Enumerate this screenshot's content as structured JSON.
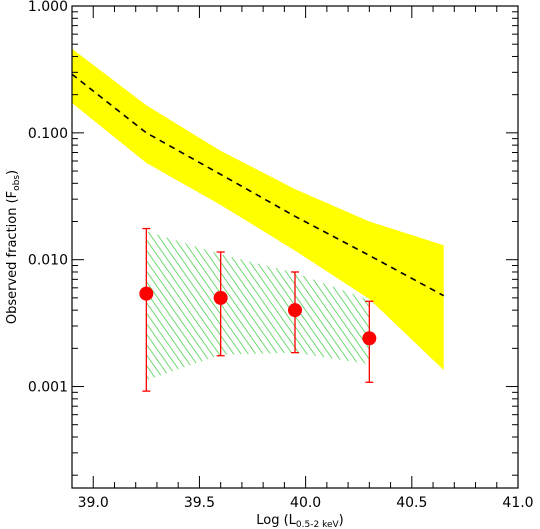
{
  "chart_data": {
    "type": "scatter",
    "xlabel_prefix": "Log (L",
    "xlabel_sub": "0.5-2 keV",
    "xlabel_suffix": ")",
    "ylabel_prefix": "Observed fraction (F",
    "ylabel_sub": "obs",
    "ylabel_suffix": ")",
    "xlim": [
      38.9,
      41.0
    ],
    "ylim": [
      0.0001585,
      1.0
    ],
    "y_scale": "log",
    "x_ticks": [
      {
        "value": 39.0,
        "label": "39.0"
      },
      {
        "value": 39.5,
        "label": "39.5"
      },
      {
        "value": 40.0,
        "label": "40.0"
      },
      {
        "value": 40.5,
        "label": "40.5"
      },
      {
        "value": 41.0,
        "label": "41.0"
      }
    ],
    "y_ticks": [
      {
        "value": 0.001,
        "label": "0.001"
      },
      {
        "value": 0.01,
        "label": "0.010"
      },
      {
        "value": 0.1,
        "label": "0.100"
      },
      {
        "value": 1.0,
        "label": "1.000"
      }
    ],
    "model_band": {
      "color": "#ffff00",
      "x": [
        38.9,
        39.25,
        39.6,
        39.95,
        40.3,
        40.65
      ],
      "upper": [
        0.46,
        0.165,
        0.072,
        0.036,
        0.02,
        0.013
      ],
      "lower": [
        0.172,
        0.058,
        0.027,
        0.0118,
        0.0049,
        0.00135
      ]
    },
    "model_line": {
      "color": "#000000",
      "style": "dashed",
      "x": [
        38.9,
        39.25,
        39.6,
        39.95,
        40.3,
        40.65
      ],
      "y": [
        0.29,
        0.1,
        0.047,
        0.022,
        0.0108,
        0.0052
      ]
    },
    "observed_band": {
      "color": "#33cc33",
      "style": "hatched",
      "x": [
        39.25,
        39.6,
        39.95,
        40.3
      ],
      "upper": [
        0.0168,
        0.011,
        0.0079,
        0.0048
      ],
      "lower": [
        0.00112,
        0.00178,
        0.00185,
        0.0015
      ]
    },
    "points": {
      "color": "#ff0000",
      "x": [
        39.25,
        39.6,
        39.95,
        40.3
      ],
      "y": [
        0.0054,
        0.005,
        0.004,
        0.0024
      ],
      "err_high": [
        0.0176,
        0.0115,
        0.008,
        0.0047
      ],
      "err_low": [
        0.00092,
        0.00175,
        0.00185,
        0.00108
      ]
    }
  }
}
